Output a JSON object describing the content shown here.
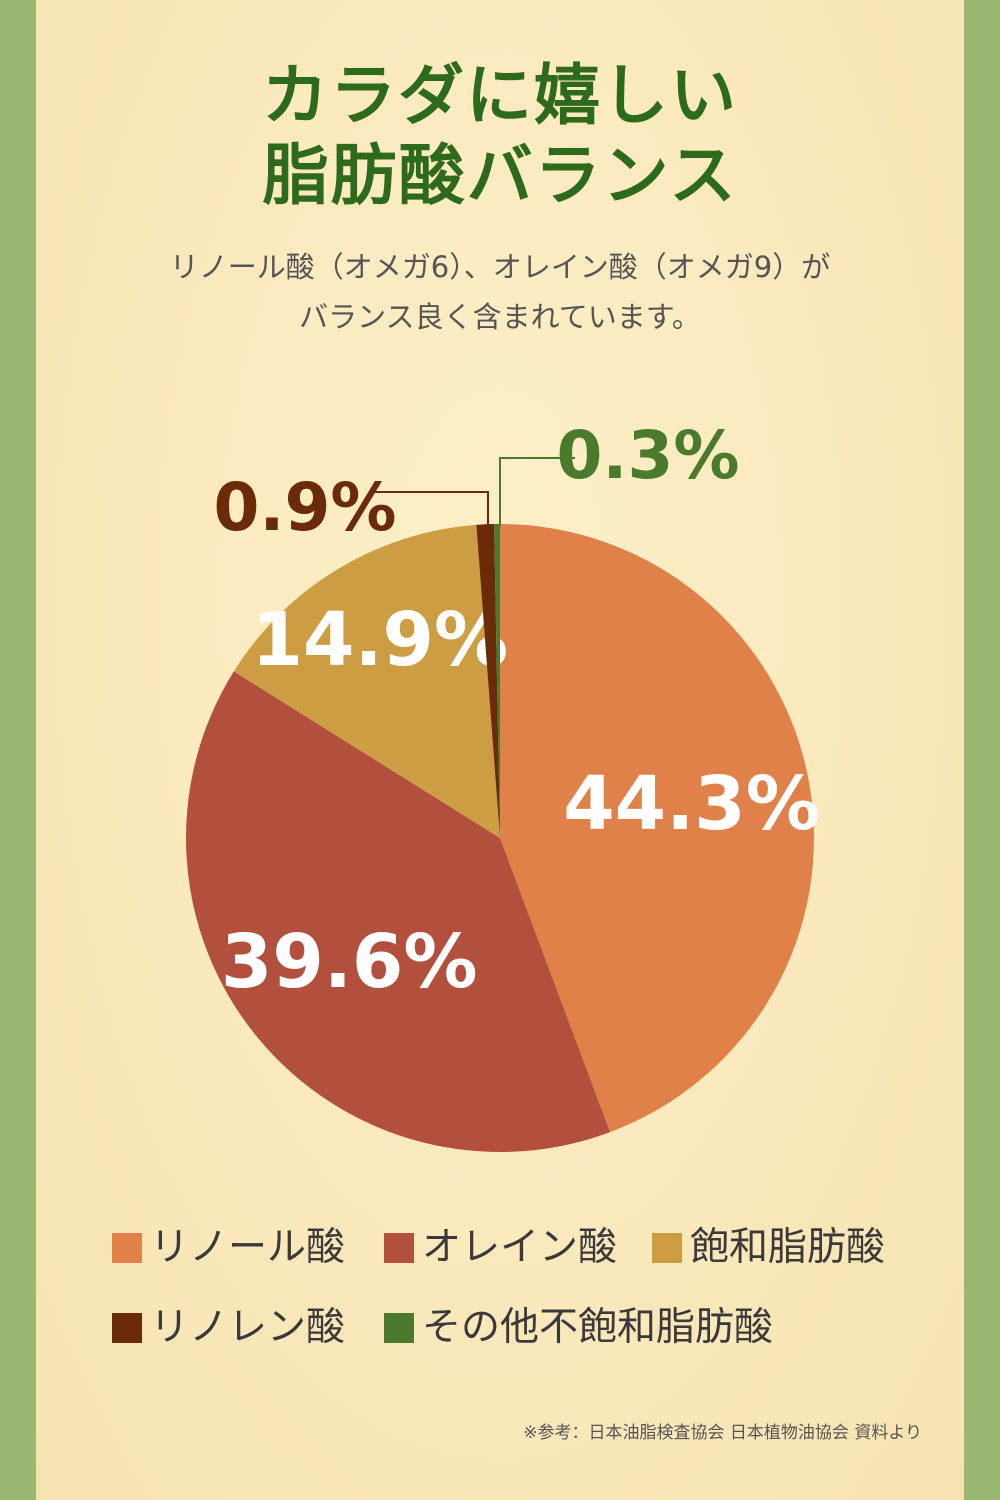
{
  "title_lines": [
    "カラダに嬉しい",
    "脂肪酸バランス"
  ],
  "subtitle_lines": [
    "リノール酸（オメガ6）、オレイン酸（オメガ9）が",
    "バランス良く含まれています。"
  ],
  "chart_data": {
    "type": "pie",
    "unit": "%",
    "slices": [
      {
        "name": "リノール酸",
        "value": 44.3,
        "color": "#e08149",
        "label_color": "#ffffff"
      },
      {
        "name": "オレイン酸",
        "value": 39.6,
        "color": "#b34f3d",
        "label_color": "#ffffff"
      },
      {
        "name": "飽和脂肪酸",
        "value": 14.9,
        "color": "#cc9d42",
        "label_color": "#ffffff"
      },
      {
        "name": "リノレン酸",
        "value": 0.9,
        "color": "#6b2a08",
        "label_color": "#6b2a08"
      },
      {
        "name": "その他不飽和脂肪酸",
        "value": 0.3,
        "color": "#4c7a2c",
        "label_color": "#4c7a2c"
      }
    ]
  },
  "note": "※参考：日本油脂検査協会 日本植物油協会 資料より"
}
